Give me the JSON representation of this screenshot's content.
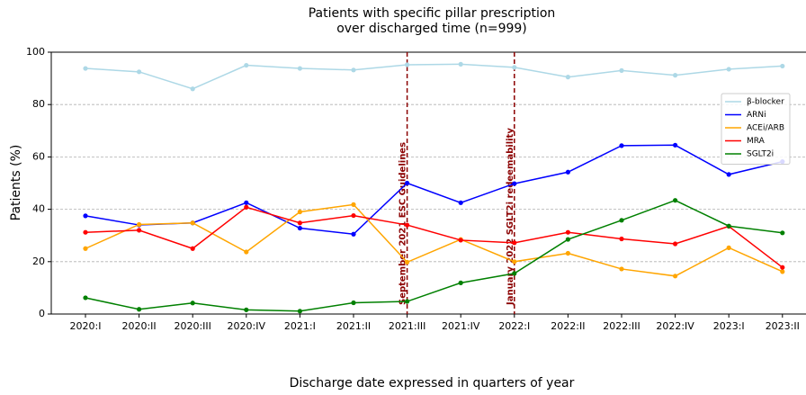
{
  "chart_data": {
    "type": "line",
    "title": [
      "Patients with specific pillar prescription",
      "over discharged time (n=999)"
    ],
    "x_label": "Discharge date expressed in quarters of year",
    "y_label": "Patients (%)",
    "categories": [
      "2020:I",
      "2020:II",
      "2020:III",
      "2020:IV",
      "2021:I",
      "2021:II",
      "2021:III",
      "2021:IV",
      "2022:I",
      "2022:II",
      "2022:III",
      "2022:IV",
      "2023:I",
      "2023:II"
    ],
    "series": [
      {
        "name": "β-blocker",
        "color": "#add8e6",
        "values": [
          93.8,
          92.5,
          86,
          95,
          93.8,
          93.2,
          95.2,
          95.4,
          94.2,
          90.5,
          93,
          91.2,
          93.5,
          94.7
        ]
      },
      {
        "name": "ARNi",
        "color": "#0000ff",
        "values": [
          37.5,
          34,
          34.8,
          42.5,
          32.8,
          30.5,
          50,
          42.5,
          49.8,
          54.2,
          64.3,
          64.5,
          53.3,
          58.2
        ]
      },
      {
        "name": "ACEi/ARB",
        "color": "#ffa500",
        "values": [
          25,
          34.2,
          34.8,
          23.7,
          39,
          41.8,
          19.8,
          28.5,
          20,
          23.2,
          17.2,
          14.5,
          25.3,
          16.2
        ]
      },
      {
        "name": "MRA",
        "color": "#ff0000",
        "values": [
          31.2,
          32,
          25,
          40.8,
          34.8,
          37.6,
          34,
          28.2,
          27.2,
          31.2,
          28.7,
          26.8,
          33.5,
          17.8
        ]
      },
      {
        "name": "SGLT2i",
        "color": "#008000",
        "values": [
          6.2,
          1.8,
          4.2,
          1.6,
          1.1,
          4.3,
          4.8,
          11.9,
          15.5,
          28.5,
          35.8,
          43.4,
          33.6,
          31
        ]
      }
    ],
    "ylim": [
      0,
      100
    ],
    "yticks": [
      0,
      20,
      40,
      60,
      80,
      100
    ],
    "grid": true,
    "legend": "right",
    "annotations": [
      {
        "x": "2021:III",
        "text": "September 2021 ESC Guidelines",
        "color": "#8b0000"
      },
      {
        "x": "2022:I",
        "text": "January 2022 SGLT2i redeemability",
        "color": "#8b0000"
      }
    ]
  }
}
